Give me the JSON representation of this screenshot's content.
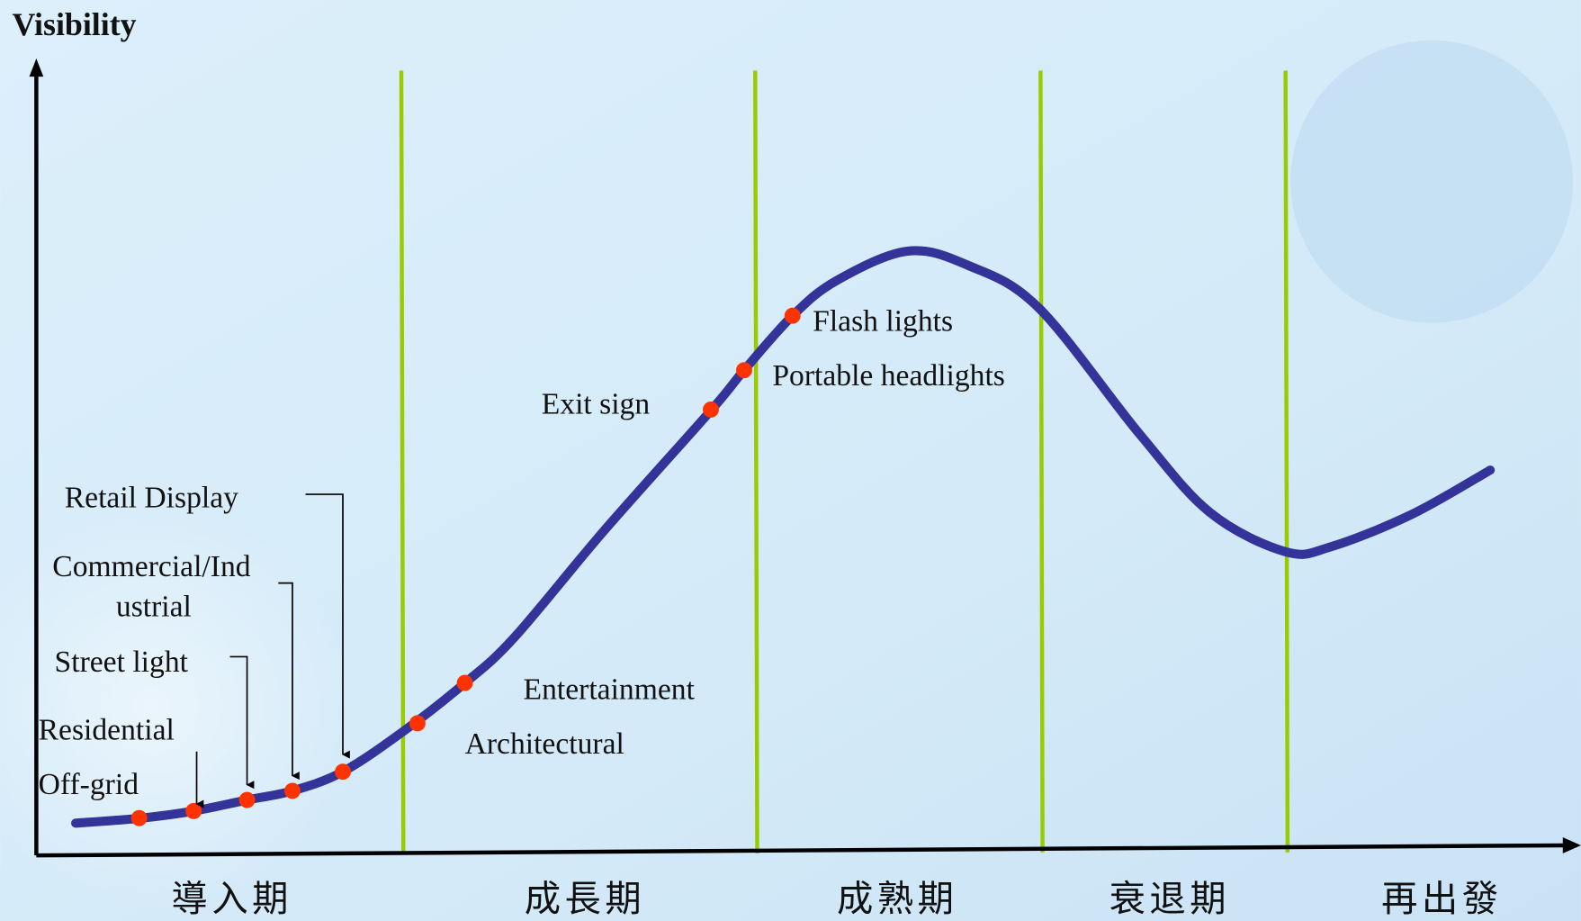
{
  "axis_label": "Visibility",
  "stages": [
    "導入期",
    "成長期",
    "成熟期",
    "衰退期",
    "再出發"
  ],
  "point_labels": [
    {
      "lines": [
        "Retail Display"
      ]
    },
    {
      "lines": [
        "Commercial/Ind",
        "ustrial"
      ]
    },
    {
      "lines": [
        "Street light"
      ]
    },
    {
      "lines": [
        "Residential"
      ]
    },
    {
      "lines": [
        "Off-grid"
      ]
    },
    {
      "lines": [
        "Entertainment"
      ]
    },
    {
      "lines": [
        "Architectural"
      ]
    },
    {
      "lines": [
        "Exit sign"
      ]
    },
    {
      "lines": [
        "Portable headlights"
      ]
    },
    {
      "lines": [
        "Flash lights"
      ]
    }
  ]
}
